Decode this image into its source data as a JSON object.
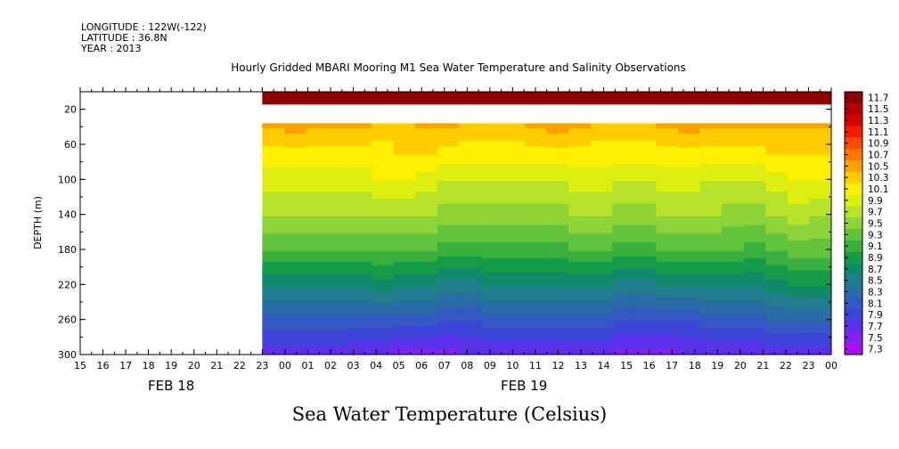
{
  "header": {
    "longitude": "LONGITUDE : 122W(-122)",
    "latitude": "LATITUDE : 36.8N",
    "year": "YEAR : 2013"
  },
  "chart_data": {
    "type": "heatmap",
    "title": "Hourly Gridded MBARI Mooring M1 Sea Water Temperature and Salinity Observations",
    "xlabel": "Sea Water Temperature (Celsius)",
    "ylabel": "DEPTH (m)",
    "y_reversed": true,
    "ylim": [
      300,
      0
    ],
    "yticks": [
      20,
      60,
      100,
      140,
      180,
      220,
      260,
      300
    ],
    "x_hours": [
      "15",
      "16",
      "17",
      "18",
      "19",
      "20",
      "21",
      "22",
      "23",
      "00",
      "01",
      "02",
      "03",
      "04",
      "05",
      "06",
      "07",
      "08",
      "09",
      "10",
      "11",
      "12",
      "13",
      "14",
      "15",
      "16",
      "17",
      "18",
      "19",
      "20",
      "21",
      "22",
      "23",
      "00"
    ],
    "date_labels": [
      {
        "label": "FEB 18",
        "hour_index": 4
      },
      {
        "label": "FEB 19",
        "hour_index": 19.5
      }
    ],
    "data_start_hour_index": 8,
    "colorbar_levels": [
      "11.7",
      "11.5",
      "11.3",
      "11.1",
      "10.9",
      "10.7",
      "10.5",
      "10.3",
      "10.1",
      "9.9",
      "9.7",
      "9.5",
      "9.3",
      "9.1",
      "8.9",
      "8.7",
      "8.5",
      "8.3",
      "8.1",
      "7.9",
      "7.7",
      "7.5",
      "7.3"
    ],
    "colorbar_colors": [
      "#8b0000",
      "#b00000",
      "#d40000",
      "#ee1c00",
      "#ff4a00",
      "#ff7600",
      "#ffa000",
      "#ffcc00",
      "#ffef00",
      "#ddef10",
      "#b7e32a",
      "#8ed338",
      "#63c33c",
      "#3aaf3e",
      "#159a48",
      "#0f8a68",
      "#1f7d8c",
      "#2a6ca6",
      "#3458c2",
      "#3e44d8",
      "#5b30ea",
      "#8420f0",
      "#a810f4"
    ],
    "temperature_rows": [
      {
        "depth": 10,
        "values": [
          11.6,
          11.6,
          11.6,
          11.6,
          11.6,
          11.6,
          11.6,
          11.6,
          11.6,
          11.6,
          11.6,
          11.6,
          11.6,
          11.6,
          11.6,
          11.6,
          11.6,
          11.6,
          11.6,
          11.6,
          11.6,
          11.6,
          11.6,
          11.6,
          11.6,
          11.6
        ]
      },
      {
        "depth": 40,
        "values": [
          10.3,
          10.4,
          10.3,
          10.3,
          10.3,
          10.2,
          10.2,
          10.3,
          10.3,
          10.2,
          10.2,
          10.2,
          10.3,
          10.4,
          10.3,
          10.2,
          10.2,
          10.2,
          10.3,
          10.4,
          10.3,
          10.3,
          10.3,
          10.3,
          10.3,
          10.3
        ]
      },
      {
        "depth": 70,
        "values": [
          10.0,
          10.0,
          10.0,
          10.0,
          10.0,
          10.0,
          10.1,
          10.1,
          10.0,
          10.0,
          10.0,
          10.0,
          10.0,
          10.0,
          10.0,
          10.0,
          10.0,
          10.0,
          10.0,
          10.0,
          10.0,
          10.0,
          10.0,
          10.1,
          10.1,
          10.1
        ]
      },
      {
        "depth": 100,
        "values": [
          9.8,
          9.8,
          9.8,
          9.8,
          9.8,
          9.9,
          9.9,
          9.8,
          9.7,
          9.7,
          9.7,
          9.7,
          9.7,
          9.7,
          9.8,
          9.8,
          9.7,
          9.7,
          9.8,
          9.8,
          9.7,
          9.7,
          9.7,
          9.8,
          9.9,
          9.9
        ]
      },
      {
        "depth": 140,
        "values": [
          9.5,
          9.5,
          9.5,
          9.5,
          9.5,
          9.5,
          9.5,
          9.5,
          9.4,
          9.4,
          9.4,
          9.4,
          9.4,
          9.4,
          9.5,
          9.5,
          9.4,
          9.4,
          9.5,
          9.5,
          9.5,
          9.4,
          9.4,
          9.5,
          9.6,
          9.5
        ]
      },
      {
        "depth": 180,
        "values": [
          9.1,
          9.1,
          9.1,
          9.1,
          9.1,
          9.1,
          9.1,
          9.1,
          9.0,
          9.0,
          9.0,
          9.0,
          9.0,
          9.0,
          9.1,
          9.1,
          9.0,
          9.0,
          9.1,
          9.1,
          9.1,
          9.1,
          9.0,
          9.1,
          9.2,
          9.2
        ]
      },
      {
        "depth": 220,
        "values": [
          8.5,
          8.5,
          8.5,
          8.5,
          8.5,
          8.6,
          8.5,
          8.5,
          8.4,
          8.4,
          8.5,
          8.5,
          8.5,
          8.5,
          8.5,
          8.5,
          8.4,
          8.4,
          8.5,
          8.5,
          8.5,
          8.5,
          8.5,
          8.6,
          8.7,
          8.7
        ]
      },
      {
        "depth": 260,
        "values": [
          8.0,
          8.0,
          8.0,
          8.0,
          8.0,
          8.0,
          8.0,
          8.0,
          7.9,
          7.9,
          8.0,
          8.0,
          8.0,
          8.0,
          8.0,
          8.0,
          7.9,
          7.9,
          7.9,
          7.9,
          8.0,
          8.0,
          8.0,
          8.1,
          8.1,
          8.1
        ]
      },
      {
        "depth": 300,
        "values": [
          7.6,
          7.6,
          7.6,
          7.6,
          7.5,
          7.5,
          7.4,
          7.4,
          7.4,
          7.5,
          7.5,
          7.5,
          7.5,
          7.5,
          7.5,
          7.5,
          7.4,
          7.4,
          7.4,
          7.5,
          7.5,
          7.5,
          7.5,
          7.6,
          7.6,
          7.6
        ]
      }
    ],
    "missing_depth_band": [
      13,
      36
    ]
  }
}
